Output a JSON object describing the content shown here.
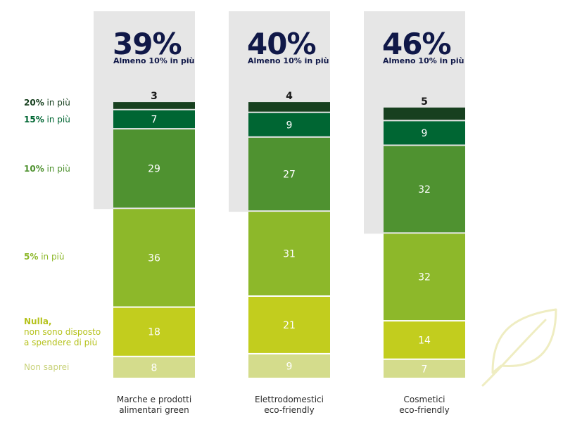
{
  "chart_data": {
    "type": "bar",
    "stacked": true,
    "categories": [
      [
        "Marche e prodotti",
        "alimentari green"
      ],
      [
        "Elettrodomestici",
        "eco-friendly"
      ],
      [
        "Cosmetici",
        "eco-friendly"
      ]
    ],
    "series": [
      {
        "name": "Non saprei",
        "color": "#d4dc8c",
        "values": [
          8,
          9,
          7
        ]
      },
      {
        "name": "Nulla, non sono disposto a spendere di più",
        "color": "#c2cd1e",
        "values": [
          18,
          21,
          14
        ]
      },
      {
        "name": "5% in più",
        "color": "#8db82a",
        "values": [
          36,
          31,
          32
        ]
      },
      {
        "name": "10% in più",
        "color": "#4f9230",
        "values": [
          29,
          27,
          32
        ]
      },
      {
        "name": "15% in più",
        "color": "#006633",
        "values": [
          7,
          9,
          9
        ]
      },
      {
        "name": "20% in più",
        "color": "#17401f",
        "values": [
          3,
          4,
          5
        ]
      }
    ],
    "highlights": [
      {
        "value": "39%",
        "label": "Almeno 10% in più"
      },
      {
        "value": "40%",
        "label": "Almeno 10% in più"
      },
      {
        "value": "46%",
        "label": "Almeno 10% in più"
      }
    ]
  },
  "legend": [
    {
      "id": "20",
      "bold": "20%",
      "rest": " in più",
      "color": "#17401f"
    },
    {
      "id": "15",
      "bold": "15%",
      "rest": " in più",
      "color": "#006633"
    },
    {
      "id": "10",
      "bold": "10%",
      "rest": " in più",
      "color": "#4f9230"
    },
    {
      "id": "5",
      "bold": "5%",
      "rest": " in più",
      "color": "#8db82a"
    },
    {
      "id": "nulla",
      "bold": "Nulla,",
      "rest_lines": [
        "non sono disposto",
        "a spendere di più"
      ],
      "color": "#b5c21c"
    },
    {
      "id": "nonsaprei",
      "bold": "",
      "rest": "Non saprei",
      "color": "#c8d27a"
    }
  ],
  "colors": {
    "highlight_box": "#e6e6e6",
    "highlight_text": "#101848",
    "leaf": "#efedc2"
  }
}
